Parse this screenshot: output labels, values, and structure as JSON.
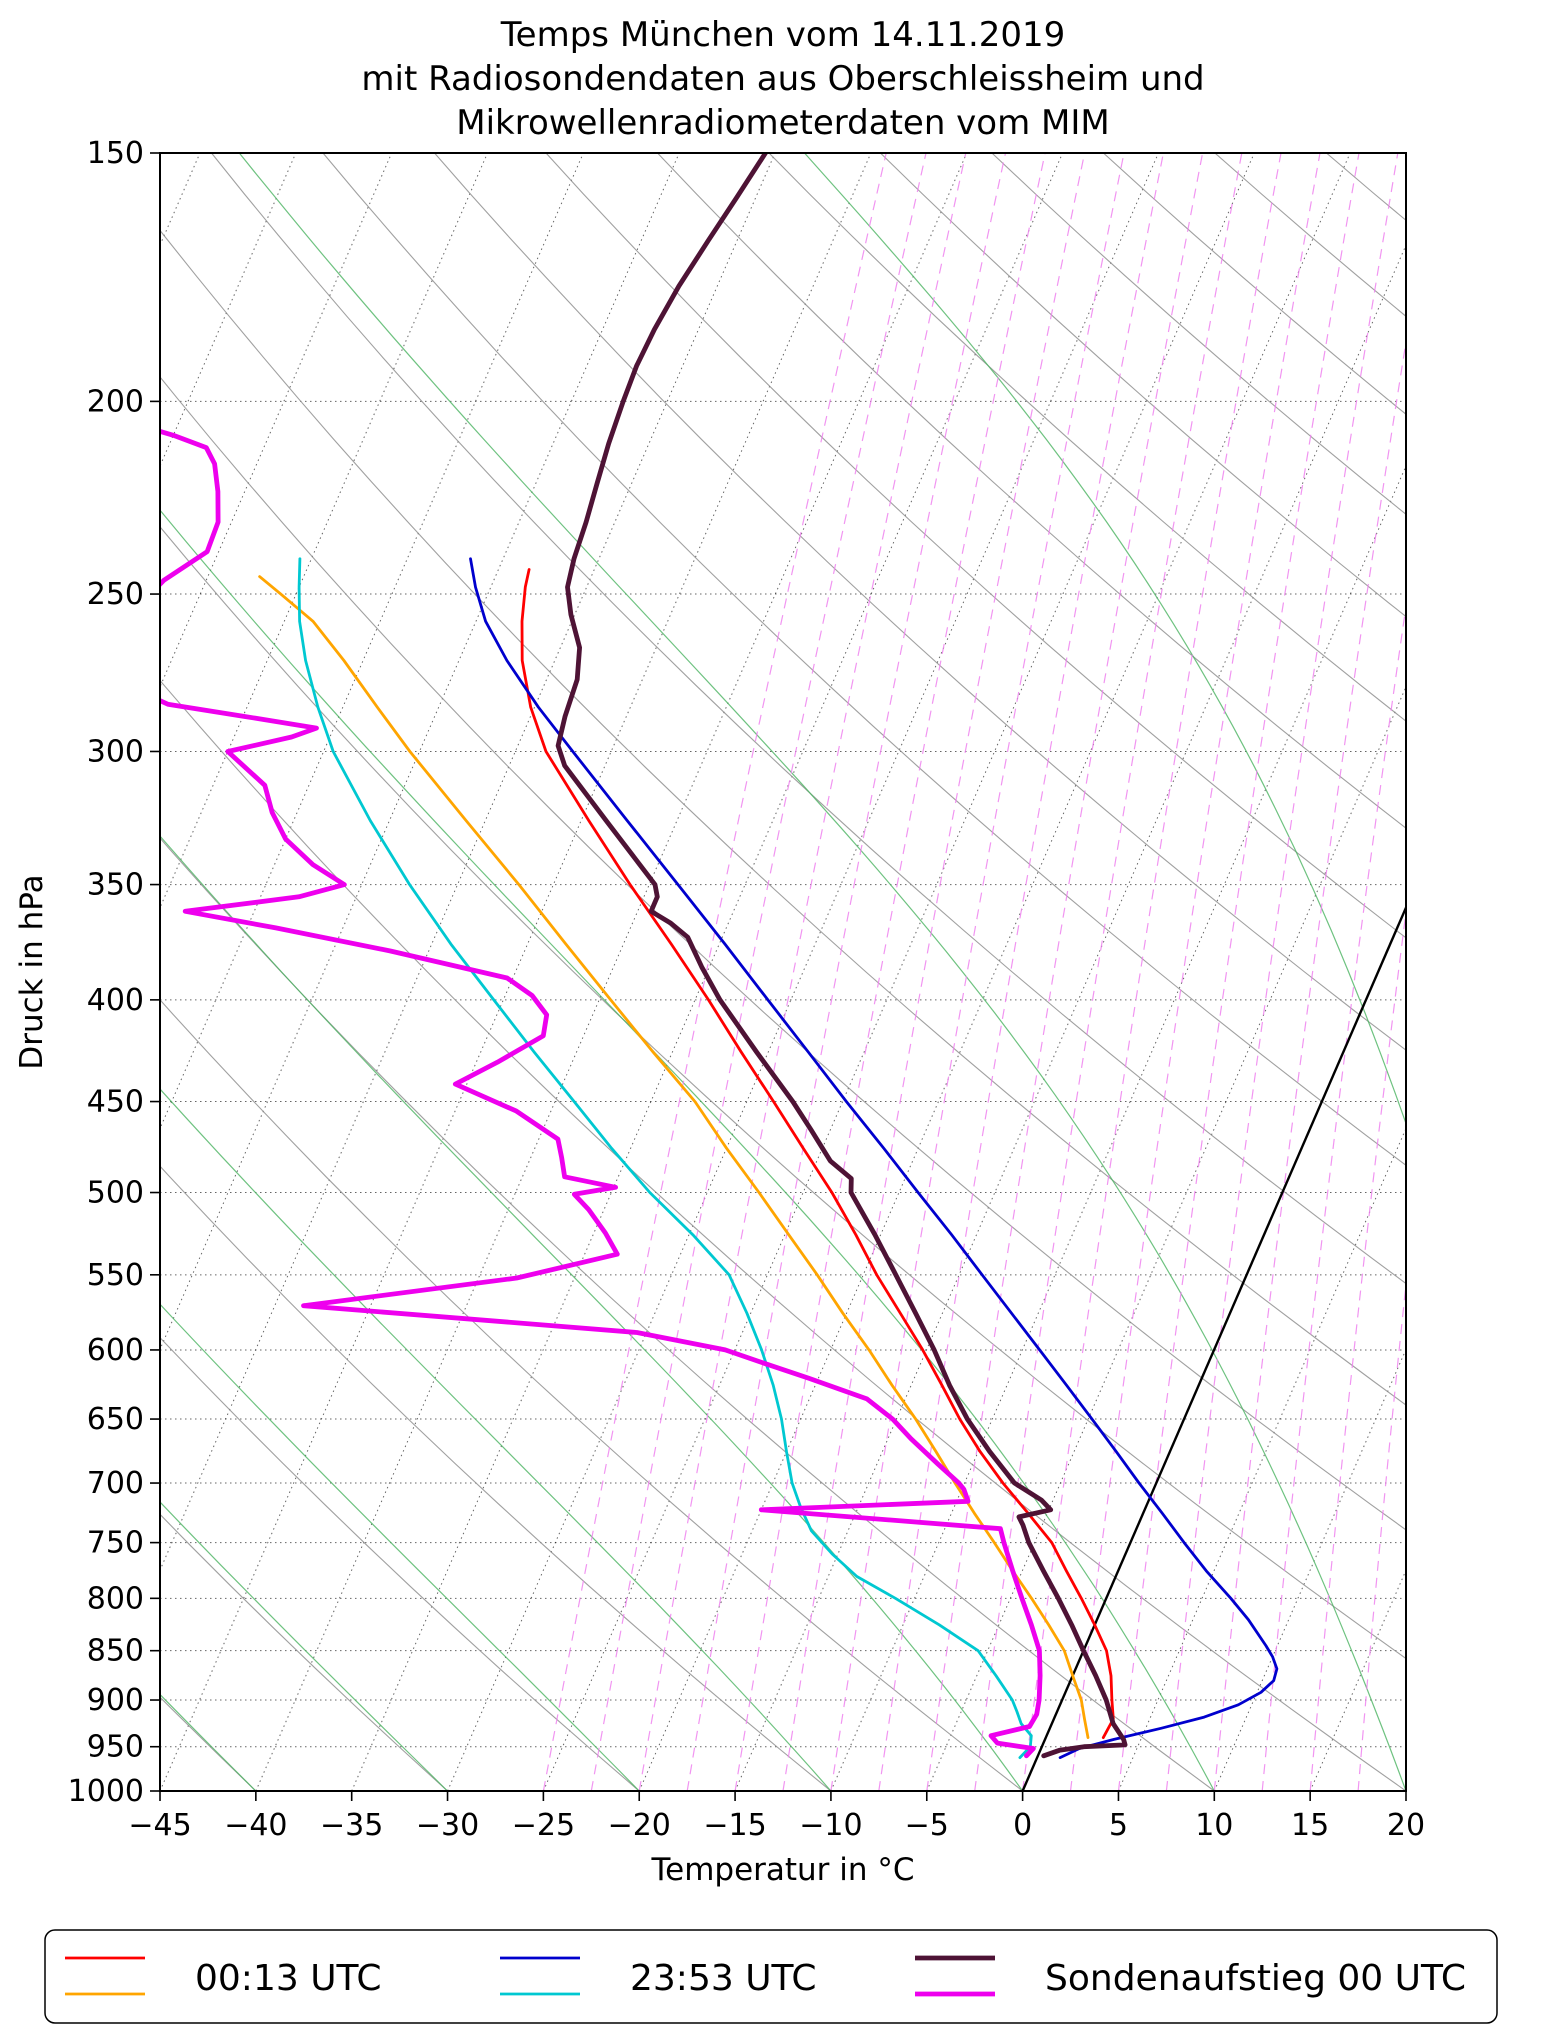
{
  "chart_data": {
    "type": "line",
    "variant": "skew-t-log-p",
    "title_lines": [
      "Temps München vom 14.11.2019",
      "mit Radiosondendaten aus Oberschleissheim und",
      "Mikrowellenradiometerdaten vom MIM"
    ],
    "xlabel": "Temperatur in °C",
    "ylabel": "Druck in hPa",
    "x_axis": {
      "min": -45,
      "max": 20,
      "tick_values": [
        -45,
        -40,
        -35,
        -30,
        -25,
        -20,
        -15,
        -10,
        -5,
        0,
        5,
        10,
        15,
        20
      ],
      "tick_labels": [
        "−45",
        "−40",
        "−35",
        "−30",
        "−25",
        "−20",
        "−15",
        "−10",
        "−5",
        "0",
        "5",
        "10",
        "15",
        "20"
      ]
    },
    "y_axis": {
      "scale": "log",
      "min_p": 150,
      "max_p": 1000,
      "tick_values": [
        150,
        200,
        250,
        300,
        350,
        400,
        450,
        500,
        550,
        600,
        650,
        700,
        750,
        800,
        850,
        900,
        950,
        1000
      ],
      "tick_labels": [
        "150",
        "200",
        "250",
        "300",
        "350",
        "400",
        "450",
        "500",
        "550",
        "600",
        "650",
        "700",
        "750",
        "800",
        "850",
        "900",
        "950",
        "1000"
      ]
    },
    "skew": {
      "dx_per_dy": 0.434
    },
    "background_lines": {
      "isotherms": {
        "color": "#000000",
        "style": "dotted",
        "start": -80,
        "end": 20,
        "step": 5
      },
      "pressure_lines": {
        "color": "#000000",
        "style": "dotted",
        "values": [
          200,
          250,
          300,
          350,
          400,
          450,
          500,
          550,
          600,
          650,
          700,
          750,
          800,
          850,
          900,
          950
        ]
      },
      "dry_adiabats": {
        "color": "#8f8f8f",
        "theta_start": -40,
        "theta_end": 160,
        "step": 10
      },
      "moist_adiabats": {
        "color": "#4ab360",
        "thetaw_start": -60,
        "thetaw_end": 30,
        "step": 10
      },
      "mixing_ratio": {
        "color": "#ee82ee",
        "style": "dashed",
        "t1000_start": -25,
        "t1000_end": 22.5,
        "step": 2.5
      },
      "zero_isotherm": {
        "color": "#000000",
        "value": 0
      }
    },
    "series": [
      {
        "id": "t0013",
        "name": "00:13 UTC Temperatur",
        "color": "#ff0000",
        "width": 2.8,
        "points": [
          [
            940,
            3.0
          ],
          [
            920,
            3.1
          ],
          [
            900,
            2.6
          ],
          [
            875,
            2.0
          ],
          [
            850,
            1.2
          ],
          [
            825,
            0.0
          ],
          [
            800,
            -1.3
          ],
          [
            775,
            -2.7
          ],
          [
            750,
            -4.1
          ],
          [
            725,
            -6.0
          ],
          [
            700,
            -8.0
          ],
          [
            675,
            -9.9
          ],
          [
            650,
            -11.7
          ],
          [
            625,
            -13.4
          ],
          [
            600,
            -15.2
          ],
          [
            575,
            -17.2
          ],
          [
            550,
            -19.3
          ],
          [
            525,
            -21.3
          ],
          [
            500,
            -23.5
          ],
          [
            475,
            -26.0
          ],
          [
            450,
            -28.6
          ],
          [
            425,
            -31.4
          ],
          [
            400,
            -34.3
          ],
          [
            375,
            -37.5
          ],
          [
            350,
            -41.0
          ],
          [
            325,
            -44.6
          ],
          [
            300,
            -48.4
          ],
          [
            285,
            -50.2
          ],
          [
            270,
            -51.7
          ],
          [
            258,
            -52.6
          ],
          [
            248,
            -53.2
          ],
          [
            243,
            -53.4
          ]
        ]
      },
      {
        "id": "td0013",
        "name": "00:13 UTC Taupunkt",
        "color": "#ffa500",
        "width": 2.8,
        "points": [
          [
            940,
            2.2
          ],
          [
            920,
            1.6
          ],
          [
            900,
            1.0
          ],
          [
            875,
            0.0
          ],
          [
            850,
            -1.0
          ],
          [
            825,
            -2.4
          ],
          [
            800,
            -3.9
          ],
          [
            775,
            -5.5
          ],
          [
            750,
            -7.1
          ],
          [
            725,
            -8.8
          ],
          [
            700,
            -10.5
          ],
          [
            675,
            -12.2
          ],
          [
            650,
            -14.0
          ],
          [
            625,
            -16.0
          ],
          [
            600,
            -18.0
          ],
          [
            575,
            -20.2
          ],
          [
            550,
            -22.4
          ],
          [
            525,
            -24.8
          ],
          [
            500,
            -27.3
          ],
          [
            475,
            -30.0
          ],
          [
            450,
            -32.7
          ],
          [
            425,
            -36.0
          ],
          [
            400,
            -39.4
          ],
          [
            375,
            -43.0
          ],
          [
            350,
            -46.8
          ],
          [
            325,
            -51.0
          ],
          [
            300,
            -55.5
          ],
          [
            285,
            -58.2
          ],
          [
            270,
            -61.0
          ],
          [
            258,
            -63.5
          ],
          [
            250,
            -65.8
          ],
          [
            245,
            -67.3
          ]
        ]
      },
      {
        "id": "t2353",
        "name": "23:53 UTC Temperatur",
        "color": "#0000cd",
        "width": 2.8,
        "points": [
          [
            962,
            1.2
          ],
          [
            952,
            2.0
          ],
          [
            942,
            3.6
          ],
          [
            930,
            5.8
          ],
          [
            918,
            7.8
          ],
          [
            905,
            9.3
          ],
          [
            892,
            10.2
          ],
          [
            880,
            10.6
          ],
          [
            868,
            10.5
          ],
          [
            856,
            10.0
          ],
          [
            845,
            9.4
          ],
          [
            820,
            7.9
          ],
          [
            800,
            6.5
          ],
          [
            775,
            4.6
          ],
          [
            750,
            2.8
          ],
          [
            725,
            1.0
          ],
          [
            700,
            -0.9
          ],
          [
            675,
            -2.8
          ],
          [
            650,
            -4.8
          ],
          [
            625,
            -6.9
          ],
          [
            600,
            -9.1
          ],
          [
            575,
            -11.4
          ],
          [
            550,
            -13.8
          ],
          [
            525,
            -16.3
          ],
          [
            500,
            -19.0
          ],
          [
            475,
            -21.8
          ],
          [
            450,
            -24.8
          ],
          [
            425,
            -27.9
          ],
          [
            400,
            -31.2
          ],
          [
            375,
            -34.7
          ],
          [
            350,
            -38.5
          ],
          [
            325,
            -42.6
          ],
          [
            300,
            -47.0
          ],
          [
            285,
            -49.8
          ],
          [
            270,
            -52.5
          ],
          [
            258,
            -54.5
          ],
          [
            248,
            -55.8
          ],
          [
            240,
            -56.7
          ]
        ]
      },
      {
        "id": "td2353",
        "name": "23:53 UTC Taupunkt",
        "color": "#00c8d1",
        "width": 2.8,
        "points": [
          [
            962,
            -0.9
          ],
          [
            950,
            -0.6
          ],
          [
            938,
            -0.8
          ],
          [
            925,
            -1.6
          ],
          [
            912,
            -2.1
          ],
          [
            900,
            -2.6
          ],
          [
            875,
            -4.0
          ],
          [
            850,
            -5.5
          ],
          [
            825,
            -8.1
          ],
          [
            800,
            -11.0
          ],
          [
            780,
            -13.5
          ],
          [
            760,
            -15.3
          ],
          [
            740,
            -16.9
          ],
          [
            720,
            -18.0
          ],
          [
            700,
            -19.0
          ],
          [
            675,
            -20.0
          ],
          [
            650,
            -21.0
          ],
          [
            625,
            -22.2
          ],
          [
            600,
            -23.6
          ],
          [
            575,
            -25.2
          ],
          [
            550,
            -27.0
          ],
          [
            525,
            -29.8
          ],
          [
            500,
            -33.0
          ],
          [
            475,
            -36.0
          ],
          [
            450,
            -39.0
          ],
          [
            425,
            -42.2
          ],
          [
            400,
            -45.5
          ],
          [
            375,
            -49.0
          ],
          [
            350,
            -52.5
          ],
          [
            325,
            -56.0
          ],
          [
            300,
            -59.5
          ],
          [
            285,
            -61.3
          ],
          [
            270,
            -63.0
          ],
          [
            258,
            -64.2
          ],
          [
            248,
            -65.0
          ],
          [
            240,
            -65.6
          ]
        ]
      },
      {
        "id": "tsonde",
        "name": "Sondenaufstieg 00 UTC Temperatur",
        "color": "#4e1335",
        "width": 4.8,
        "points": [
          [
            960,
            0.3
          ],
          [
            954,
            1.0
          ],
          [
            950,
            2.2
          ],
          [
            948,
            4.3
          ],
          [
            942,
            4.1
          ],
          [
            925,
            3.2
          ],
          [
            900,
            2.3
          ],
          [
            875,
            1.2
          ],
          [
            850,
            0.0
          ],
          [
            825,
            -1.2
          ],
          [
            800,
            -2.5
          ],
          [
            775,
            -3.9
          ],
          [
            750,
            -5.3
          ],
          [
            735,
            -6.0
          ],
          [
            728,
            -6.4
          ],
          [
            722,
            -4.9
          ],
          [
            714,
            -5.6
          ],
          [
            700,
            -7.4
          ],
          [
            675,
            -9.4
          ],
          [
            650,
            -11.3
          ],
          [
            625,
            -13.0
          ],
          [
            600,
            -14.6
          ],
          [
            575,
            -16.4
          ],
          [
            550,
            -18.3
          ],
          [
            525,
            -20.3
          ],
          [
            500,
            -22.5
          ],
          [
            492,
            -22.8
          ],
          [
            482,
            -24.3
          ],
          [
            465,
            -26.0
          ],
          [
            450,
            -27.6
          ],
          [
            425,
            -30.6
          ],
          [
            400,
            -33.7
          ],
          [
            385,
            -35.4
          ],
          [
            372,
            -36.8
          ],
          [
            366,
            -38.0
          ],
          [
            361,
            -39.3
          ],
          [
            355,
            -39.3
          ],
          [
            350,
            -39.7
          ],
          [
            325,
            -43.7
          ],
          [
            305,
            -47.1
          ],
          [
            298,
            -47.9
          ],
          [
            288,
            -48.2
          ],
          [
            276,
            -48.4
          ],
          [
            266,
            -49.0
          ],
          [
            256,
            -50.2
          ],
          [
            248,
            -51.0
          ],
          [
            240,
            -51.3
          ],
          [
            230,
            -51.5
          ],
          [
            220,
            -51.8
          ],
          [
            210,
            -52.1
          ],
          [
            200,
            -52.3
          ],
          [
            192,
            -52.4
          ],
          [
            184,
            -52.3
          ],
          [
            175,
            -52.0
          ],
          [
            166,
            -51.5
          ],
          [
            158,
            -51.0
          ],
          [
            150,
            -50.5
          ]
        ]
      },
      {
        "id": "tdsonde",
        "name": "Sondenaufstieg 00 UTC Taupunkt",
        "color": "#ee00ee",
        "width": 4.8,
        "points": [
          [
            960,
            -0.6
          ],
          [
            952,
            -0.4
          ],
          [
            946,
            -2.4
          ],
          [
            938,
            -2.9
          ],
          [
            928,
            -1.1
          ],
          [
            915,
            -1.0
          ],
          [
            900,
            -1.2
          ],
          [
            875,
            -1.7
          ],
          [
            850,
            -2.3
          ],
          [
            825,
            -3.3
          ],
          [
            800,
            -4.4
          ],
          [
            775,
            -5.5
          ],
          [
            750,
            -6.6
          ],
          [
            738,
            -7.1
          ],
          [
            722,
            -20.0
          ],
          [
            715,
            -9.4
          ],
          [
            705,
            -9.9
          ],
          [
            700,
            -10.3
          ],
          [
            685,
            -11.8
          ],
          [
            665,
            -13.8
          ],
          [
            650,
            -15.2
          ],
          [
            635,
            -17.0
          ],
          [
            620,
            -20.5
          ],
          [
            608,
            -23.5
          ],
          [
            600,
            -25.5
          ],
          [
            588,
            -30.5
          ],
          [
            570,
            -48.5
          ],
          [
            552,
            -38.0
          ],
          [
            537,
            -33.3
          ],
          [
            524,
            -34.4
          ],
          [
            510,
            -35.8
          ],
          [
            501,
            -36.9
          ],
          [
            497,
            -34.9
          ],
          [
            491,
            -37.8
          ],
          [
            480,
            -38.4
          ],
          [
            470,
            -39.0
          ],
          [
            455,
            -41.8
          ],
          [
            441,
            -45.6
          ],
          [
            430,
            -43.9
          ],
          [
            417,
            -42.1
          ],
          [
            407,
            -42.4
          ],
          [
            398,
            -43.6
          ],
          [
            390,
            -45.3
          ],
          [
            378,
            -52.0
          ],
          [
            368,
            -58.5
          ],
          [
            361,
            -63.6
          ],
          [
            355,
            -58.0
          ],
          [
            350,
            -55.9
          ],
          [
            342,
            -58.0
          ],
          [
            332,
            -60.0
          ],
          [
            322,
            -61.3
          ],
          [
            312,
            -62.3
          ],
          [
            300,
            -65.0
          ],
          [
            295,
            -62.0
          ],
          [
            292,
            -60.9
          ],
          [
            288,
            -65.0
          ],
          [
            284,
            -69.2
          ],
          [
            276,
            -72.6
          ],
          [
            266,
            -73.4
          ],
          [
            256,
            -73.2
          ],
          [
            246,
            -72.2
          ],
          [
            238,
            -70.6
          ],
          [
            230,
            -70.7
          ],
          [
            222,
            -71.4
          ],
          [
            215,
            -72.2
          ],
          [
            211,
            -73.0
          ],
          [
            208,
            -75.0
          ],
          [
            205,
            -77.5
          ]
        ]
      }
    ],
    "legend": [
      {
        "label": "00:13 UTC",
        "colors": [
          "#ff0000",
          "#ffa500"
        ],
        "line_widths": [
          2.8,
          2.8
        ]
      },
      {
        "label": "23:53 UTC",
        "colors": [
          "#0000cd",
          "#00c8d1"
        ],
        "line_widths": [
          2.8,
          2.8
        ]
      },
      {
        "label": "Sondenaufstieg 00 UTC",
        "colors": [
          "#4e1335",
          "#ee00ee"
        ],
        "line_widths": [
          4.8,
          4.8
        ]
      }
    ]
  }
}
